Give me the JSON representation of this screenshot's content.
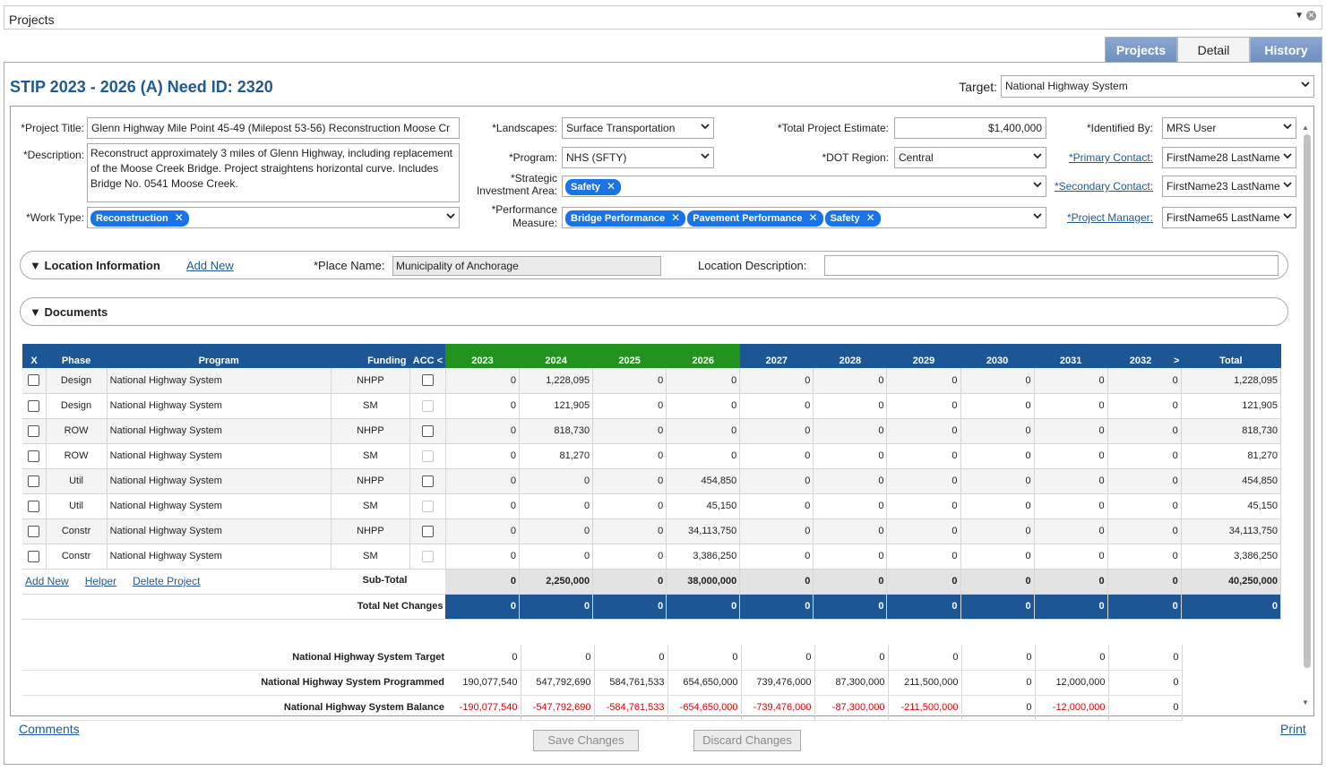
{
  "window": {
    "title": "Projects"
  },
  "tabs": [
    {
      "label": "Projects"
    },
    {
      "label": "Detail"
    },
    {
      "label": "History"
    }
  ],
  "heading": "STIP 2023 - 2026 (A) Need ID: 2320",
  "target": {
    "label": "Target:",
    "value": "National Highway System"
  },
  "form": {
    "project_title": {
      "label": "*Project Title:",
      "value": "Glenn Highway Mile Point 45-49 (Milepost  53-56) Reconstruction Moose Cr"
    },
    "description": {
      "label": "*Description:",
      "value": "Reconstruct approximately 3 miles of Glenn Highway, including replacement of the Moose Creek Bridge.  Project straightens horizontal curve.  Includes Bridge No. 0541 Moose Creek."
    },
    "work_type": {
      "label": "*Work Type:",
      "chips": [
        "Reconstruction"
      ]
    },
    "landscapes": {
      "label": "*Landscapes:",
      "value": "Surface Transportation"
    },
    "program": {
      "label": "*Program:",
      "value": "NHS (SFTY)"
    },
    "strategic": {
      "label1": "*Strategic",
      "label2": "Investment Area:",
      "chips": [
        "Safety"
      ]
    },
    "performance": {
      "label1": "*Performance",
      "label2": "Measure:",
      "chips": [
        "Bridge Performance",
        "Pavement Performance",
        "Safety"
      ]
    },
    "total_estimate": {
      "label": "*Total Project Estimate:",
      "value": "$1,400,000"
    },
    "dot_region": {
      "label": "*DOT Region:",
      "value": "Central"
    },
    "identified_by": {
      "label": "*Identified By:",
      "value": "MRS User"
    },
    "primary_contact": {
      "label": "*Primary Contact:",
      "value": "FirstName28 LastName"
    },
    "secondary_contact": {
      "label": "*Secondary Contact:",
      "value": "FirstName23 LastName"
    },
    "project_manager": {
      "label": "*Project Manager:",
      "value": "FirstName65 LastName"
    }
  },
  "location": {
    "title": "Location Information",
    "add_new": "Add New",
    "place_label": "*Place Name:",
    "place_value": "Municipality of Anchorage",
    "desc_label": "Location Description:",
    "desc_value": ""
  },
  "documents": {
    "title": "Documents"
  },
  "grid": {
    "headers": {
      "x": "X",
      "phase": "Phase",
      "program": "Program",
      "funding": "Funding",
      "acc": "ACC",
      "prev": "<",
      "next": ">",
      "total": "Total"
    },
    "years": [
      "2023",
      "2024",
      "2025",
      "2026",
      "2027",
      "2028",
      "2029",
      "2030",
      "2031",
      "2032"
    ],
    "rows": [
      {
        "phase": "Design",
        "program": "National Highway System",
        "funding": "NHPP",
        "values": [
          "0",
          "1,228,095",
          "0",
          "0",
          "0",
          "0",
          "0",
          "0",
          "0",
          "0"
        ],
        "total": "1,228,095"
      },
      {
        "phase": "Design",
        "program": "National Highway System",
        "funding": "SM",
        "values": [
          "0",
          "121,905",
          "0",
          "0",
          "0",
          "0",
          "0",
          "0",
          "0",
          "0"
        ],
        "total": "121,905"
      },
      {
        "phase": "ROW",
        "program": "National Highway System",
        "funding": "NHPP",
        "values": [
          "0",
          "818,730",
          "0",
          "0",
          "0",
          "0",
          "0",
          "0",
          "0",
          "0"
        ],
        "total": "818,730"
      },
      {
        "phase": "ROW",
        "program": "National Highway System",
        "funding": "SM",
        "values": [
          "0",
          "81,270",
          "0",
          "0",
          "0",
          "0",
          "0",
          "0",
          "0",
          "0"
        ],
        "total": "81,270"
      },
      {
        "phase": "Util",
        "program": "National Highway System",
        "funding": "NHPP",
        "values": [
          "0",
          "0",
          "0",
          "454,850",
          "0",
          "0",
          "0",
          "0",
          "0",
          "0"
        ],
        "total": "454,850"
      },
      {
        "phase": "Util",
        "program": "National Highway System",
        "funding": "SM",
        "values": [
          "0",
          "0",
          "0",
          "45,150",
          "0",
          "0",
          "0",
          "0",
          "0",
          "0"
        ],
        "total": "45,150"
      },
      {
        "phase": "Constr",
        "program": "National Highway System",
        "funding": "NHPP",
        "values": [
          "0",
          "0",
          "0",
          "34,113,750",
          "0",
          "0",
          "0",
          "0",
          "0",
          "0"
        ],
        "total": "34,113,750"
      },
      {
        "phase": "Constr",
        "program": "National Highway System",
        "funding": "SM",
        "values": [
          "0",
          "0",
          "0",
          "3,386,250",
          "0",
          "0",
          "0",
          "0",
          "0",
          "0"
        ],
        "total": "3,386,250"
      }
    ],
    "links": [
      "Add New",
      "Helper",
      "Delete Project"
    ],
    "subtotal": {
      "label": "Sub-Total",
      "values": [
        "0",
        "2,250,000",
        "0",
        "38,000,000",
        "0",
        "0",
        "0",
        "0",
        "0",
        "0"
      ],
      "total": "40,250,000"
    },
    "net": {
      "label": "Total Net Changes",
      "values": [
        "0",
        "0",
        "0",
        "0",
        "0",
        "0",
        "0",
        "0",
        "0",
        "0"
      ],
      "total": "0"
    }
  },
  "targets": [
    {
      "label": "National Highway System Target",
      "values": [
        "0",
        "0",
        "0",
        "0",
        "0",
        "0",
        "0",
        "0",
        "0",
        "0"
      ],
      "neg": false
    },
    {
      "label": "National Highway System Programmed",
      "values": [
        "190,077,540",
        "547,792,690",
        "584,761,533",
        "654,650,000",
        "739,476,000",
        "87,300,000",
        "211,500,000",
        "0",
        "12,000,000",
        "0"
      ],
      "neg": false
    },
    {
      "label": "National Highway System Balance",
      "values": [
        "-190,077,540",
        "-547,792,690",
        "-584,761,533",
        "-654,650,000",
        "-739,476,000",
        "-87,300,000",
        "-211,500,000",
        "0",
        "-12,000,000",
        "0"
      ],
      "neg": true
    }
  ],
  "footer": {
    "comments": "Comments",
    "print": "Print",
    "save": "Save Changes",
    "discard": "Discard Changes"
  },
  "colors": {
    "header_blue": "#1d5694",
    "year_green": "#23931f",
    "link": "#1f5a96",
    "negative": "#e00000"
  }
}
